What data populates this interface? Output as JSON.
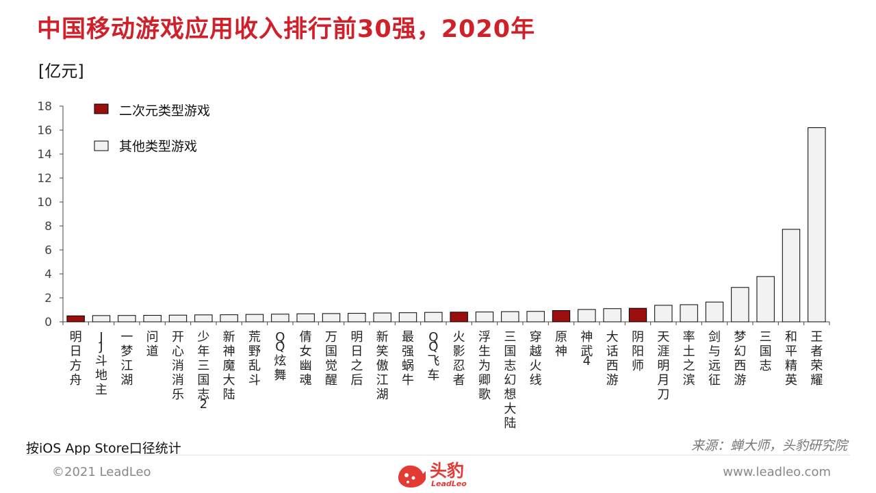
{
  "title": "中国移动游戏应用收入排行前30强，2020年",
  "unit_label": "[亿元]",
  "note": "按iOS App Store口径统计",
  "source": "来源：蝉大师，头豹研究院",
  "copyright": "©2021 LeadLeo",
  "website": "www.leadleo.com",
  "logo": {
    "text": "头豹",
    "sub": "LeadLeo"
  },
  "colors": {
    "title": "#d0202a",
    "anime": "#9b0e0e",
    "other": "#f2f2f2",
    "logo": "#e33a34"
  },
  "chart_data": {
    "type": "bar",
    "ylim": [
      0,
      18
    ],
    "yticks": [
      0,
      2,
      4,
      6,
      8,
      10,
      12,
      14,
      16,
      18
    ],
    "legend_position": "top-left",
    "series": [
      {
        "name": "二次元类型游戏",
        "key": "anime"
      },
      {
        "name": "其他类型游戏",
        "key": "other"
      }
    ],
    "categories": [
      "明日方舟",
      "JJ斗地主",
      "一梦江湖",
      "问道",
      "开心消消乐",
      "少年三国志2",
      "新神魔大陆",
      "荒野乱斗",
      "QQ炫舞",
      "倩女幽魂",
      "万国觉醒",
      "明日之后",
      "新笑傲江湖",
      "最强蜗牛",
      "QQ飞车",
      "火影忍者",
      "浮生为卿歌",
      "三国志幻想大陆",
      "穿越火线",
      "原神",
      "神武4",
      "大话西游",
      "阴阳师",
      "天涯明月刀",
      "率土之滨",
      "剑与远征",
      "梦幻西游",
      "三国志",
      "和平精英",
      "王者荣耀"
    ],
    "values": [
      0.5,
      0.52,
      0.53,
      0.54,
      0.56,
      0.58,
      0.59,
      0.62,
      0.64,
      0.67,
      0.69,
      0.71,
      0.74,
      0.76,
      0.79,
      0.81,
      0.82,
      0.85,
      0.87,
      0.94,
      1.03,
      1.1,
      1.13,
      1.38,
      1.43,
      1.65,
      2.87,
      3.78,
      7.72,
      16.2
    ],
    "types": [
      "anime",
      "other",
      "other",
      "other",
      "other",
      "other",
      "other",
      "other",
      "other",
      "other",
      "other",
      "other",
      "other",
      "other",
      "other",
      "anime",
      "other",
      "other",
      "other",
      "anime",
      "other",
      "other",
      "anime",
      "other",
      "other",
      "other",
      "other",
      "other",
      "other",
      "other"
    ]
  }
}
